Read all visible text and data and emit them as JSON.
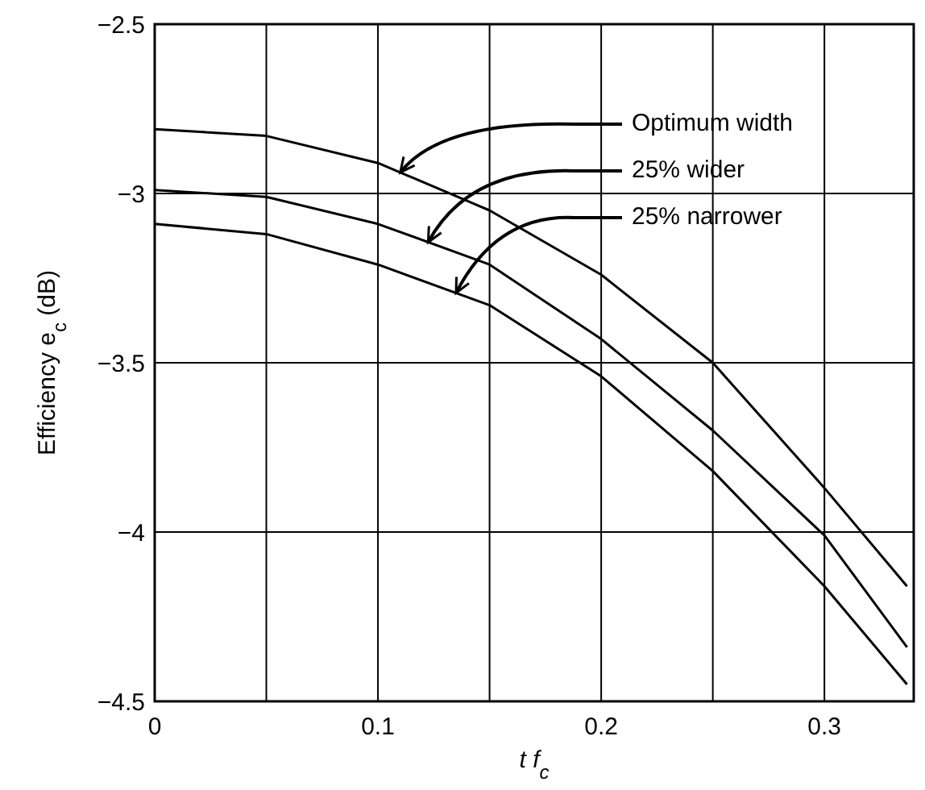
{
  "chart_data": {
    "type": "line",
    "xlabel": "t f$_{c}$",
    "ylabel": "Efficiency e$_{c}$ (dB)",
    "xlim": [
      0,
      0.34
    ],
    "ylim": [
      -4.5,
      -2.5
    ],
    "xticks": [
      0,
      {
        "value": 0.05,
        "label": null
      },
      0.1,
      {
        "value": 0.15,
        "label": null
      },
      0.2,
      {
        "value": 0.25,
        "label": null
      },
      0.3
    ],
    "yticks": [
      {
        "value": -4.5,
        "label": "−4.5"
      },
      {
        "value": -4,
        "label": "−4"
      },
      {
        "value": -3.5,
        "label": "−3.5"
      },
      {
        "value": -3,
        "label": "−3"
      },
      {
        "value": -2.5,
        "label": "−2.5"
      }
    ],
    "grid": true,
    "x": [
      0,
      0.05,
      0.1,
      0.15,
      0.2,
      0.25,
      0.3,
      0.337
    ],
    "series": [
      {
        "name": "Optimum width",
        "color": "#000000",
        "values": [
          -2.81,
          -2.83,
          -2.91,
          -3.05,
          -3.24,
          -3.5,
          -3.87,
          -4.16
        ]
      },
      {
        "name": "25% wider",
        "color": "#000000",
        "values": [
          -2.99,
          -3.01,
          -3.09,
          -3.21,
          -3.43,
          -3.7,
          -4.01,
          -4.34
        ]
      },
      {
        "name": "25% narrower",
        "color": "#000000",
        "values": [
          -3.09,
          -3.12,
          -3.21,
          -3.33,
          -3.54,
          -3.82,
          -4.16,
          -4.45
        ]
      }
    ]
  }
}
